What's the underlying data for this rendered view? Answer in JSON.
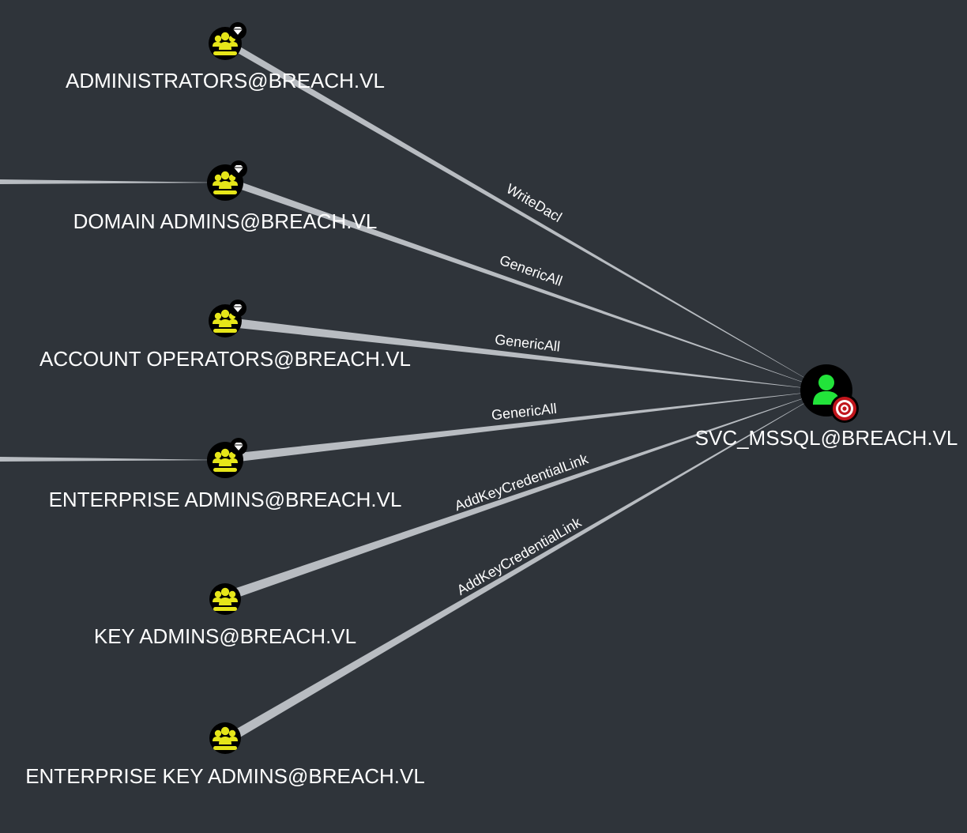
{
  "colors": {
    "background": "#2f343a",
    "edge": "#b8bcc1",
    "group_icon": "#e6e619",
    "user_icon": "#22e33a",
    "node_bg": "#000000",
    "badge_tier0": "#ffffff",
    "badge_target": "#c0161c",
    "label": "#ffffff"
  },
  "graph": {
    "nodes": {
      "administrators": {
        "label": "ADMINISTRATORS@BREACH.VL",
        "icon": "group-icon",
        "badge": "tier-zero-gem-icon"
      },
      "domain_admins": {
        "label": "DOMAIN ADMINS@BREACH.VL",
        "icon": "group-icon",
        "badge": "tier-zero-gem-icon"
      },
      "account_operators": {
        "label": "ACCOUNT OPERATORS@BREACH.VL",
        "icon": "group-icon",
        "badge": "tier-zero-gem-icon"
      },
      "enterprise_admins": {
        "label": "ENTERPRISE ADMINS@BREACH.VL",
        "icon": "group-icon",
        "badge": "tier-zero-gem-icon"
      },
      "key_admins": {
        "label": "KEY ADMINS@BREACH.VL",
        "icon": "group-icon"
      },
      "enterprise_key_admins": {
        "label": "ENTERPRISE KEY ADMINS@BREACH.VL",
        "icon": "group-icon"
      },
      "svc_mssql": {
        "label": "SVC_MSSQL@BREACH.VL",
        "icon": "user-icon",
        "badge": "target-icon"
      }
    },
    "edges": {
      "administrators": "WriteDacl",
      "domain_admins": "GenericAll",
      "account_operators": "GenericAll",
      "enterprise_admins": "GenericAll",
      "key_admins": "AddKeyCredentialLink",
      "enterprise_key_admins": "AddKeyCredentialLink"
    }
  }
}
